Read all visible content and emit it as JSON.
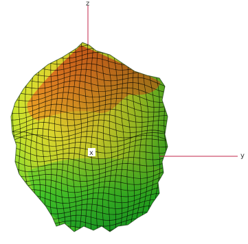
{
  "axes": {
    "x_label": "x",
    "y_label": "y",
    "z_label": "z",
    "axis_color": "#c0264a"
  },
  "surface": {
    "mesh_color": "#000000",
    "colormap": [
      "#1fcc2a",
      "#6ed62e",
      "#c8e62e",
      "#f2e832",
      "#f5b026",
      "#e6541a"
    ],
    "lighting": "shaded"
  }
}
